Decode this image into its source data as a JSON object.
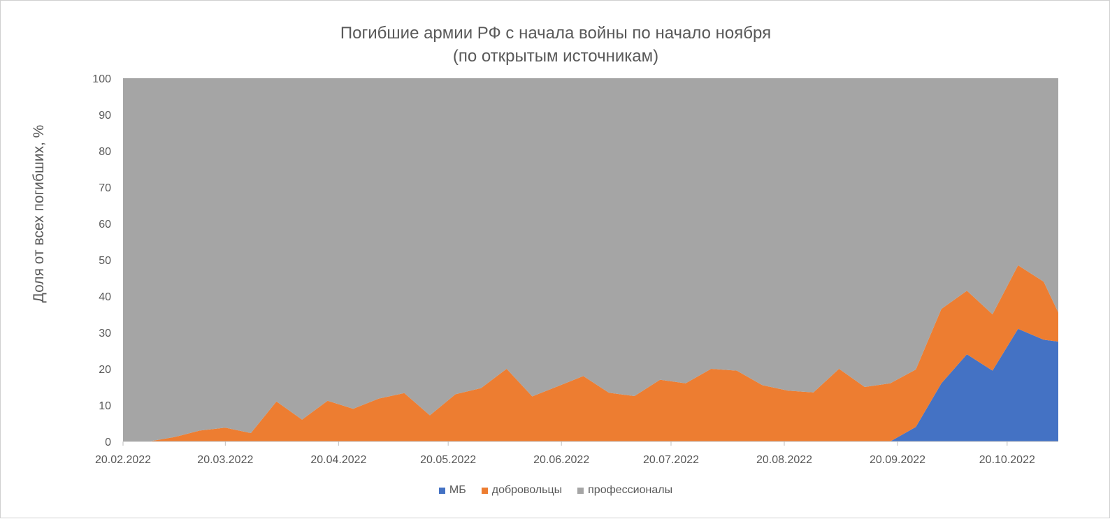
{
  "chart_data": {
    "type": "area",
    "stacked": true,
    "title": [
      "Погибшие армии РФ с начала войны по начало ноября",
      "(по открытым источникам)"
    ],
    "xlabel": "",
    "ylabel": "Доля от всех погибших, %",
    "ylim": [
      0,
      100
    ],
    "yticks": [
      "0",
      "10",
      "20",
      "30",
      "40",
      "50",
      "60",
      "70",
      "80",
      "90",
      "100"
    ],
    "xlim": [
      "20.02.2022",
      "03.11.2022"
    ],
    "xticks": [
      "20.02.2022",
      "20.03.2022",
      "20.04.2022",
      "20.05.2022",
      "20.06.2022",
      "20.07.2022",
      "20.08.2022",
      "20.09.2022",
      "20.10.2022"
    ],
    "x": [
      "20.02.2022",
      "27.02.2022",
      "06.03.2022",
      "13.03.2022",
      "20.03.2022",
      "27.03.2022",
      "03.04.2022",
      "10.04.2022",
      "17.04.2022",
      "24.04.2022",
      "01.05.2022",
      "08.05.2022",
      "15.05.2022",
      "22.05.2022",
      "29.05.2022",
      "05.06.2022",
      "12.06.2022",
      "19.06.2022",
      "26.06.2022",
      "03.07.2022",
      "10.07.2022",
      "17.07.2022",
      "24.07.2022",
      "31.07.2022",
      "07.08.2022",
      "14.08.2022",
      "21.08.2022",
      "28.08.2022",
      "04.09.2022",
      "11.09.2022",
      "18.09.2022",
      "25.09.2022",
      "02.10.2022",
      "09.10.2022",
      "16.10.2022",
      "23.10.2022",
      "30.10.2022",
      "03.11.2022"
    ],
    "series": [
      {
        "name": "МБ",
        "color": "#4472C4",
        "values": [
          0,
          0,
          0,
          0,
          0,
          0,
          0,
          0,
          0,
          0,
          0,
          0,
          0,
          0,
          0,
          0,
          0,
          0,
          0,
          0,
          0,
          0,
          0,
          0,
          0,
          0,
          0,
          0,
          0,
          0,
          0,
          4,
          16,
          24,
          19.5,
          31,
          28,
          27.5
        ]
      },
      {
        "name": "добровольцы",
        "color": "#ED7D31",
        "values": [
          0,
          0,
          1.2,
          3,
          3.8,
          2.3,
          11,
          6,
          11.2,
          9,
          11.8,
          13.3,
          7.2,
          13,
          14.7,
          20,
          12.4,
          15.2,
          18,
          13.4,
          12.5,
          17,
          16,
          20,
          19.5,
          15.5,
          14,
          13.5,
          20,
          15,
          16,
          15.8,
          20.5,
          17.5,
          15.5,
          17.5,
          16,
          8
        ]
      },
      {
        "name": "профессионалы",
        "color": "#A5A5A5",
        "values": [
          100,
          100,
          98.8,
          97,
          96.2,
          97.7,
          89,
          94,
          88.8,
          91,
          88.2,
          86.7,
          92.8,
          87,
          85.3,
          80,
          87.6,
          84.8,
          82,
          86.6,
          87.5,
          83,
          84,
          80,
          80.5,
          84.5,
          86,
          86.5,
          80,
          85,
          84,
          80.2,
          63.5,
          58.5,
          65,
          51.5,
          56,
          64.5
        ]
      }
    ],
    "legend_position": "bottom",
    "grid": false
  }
}
